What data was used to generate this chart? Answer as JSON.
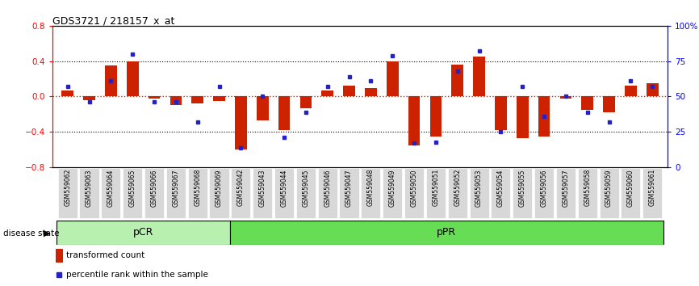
{
  "title": "GDS3721 / 218157_x_at",
  "samples": [
    "GSM559062",
    "GSM559063",
    "GSM559064",
    "GSM559065",
    "GSM559066",
    "GSM559067",
    "GSM559068",
    "GSM559069",
    "GSM559042",
    "GSM559043",
    "GSM559044",
    "GSM559045",
    "GSM559046",
    "GSM559047",
    "GSM559048",
    "GSM559049",
    "GSM559050",
    "GSM559051",
    "GSM559052",
    "GSM559053",
    "GSM559054",
    "GSM559055",
    "GSM559056",
    "GSM559057",
    "GSM559058",
    "GSM559059",
    "GSM559060",
    "GSM559061"
  ],
  "transformed_count": [
    0.07,
    -0.04,
    0.35,
    0.4,
    -0.02,
    -0.1,
    -0.08,
    -0.05,
    -0.6,
    -0.27,
    -0.38,
    -0.13,
    0.07,
    0.12,
    0.1,
    0.4,
    -0.55,
    -0.45,
    0.36,
    0.45,
    -0.38,
    -0.47,
    -0.45,
    -0.02,
    -0.15,
    -0.18,
    0.12,
    0.15
  ],
  "percentile_rank": [
    57,
    46,
    61,
    80,
    46,
    46,
    32,
    57,
    14,
    50,
    21,
    39,
    57,
    64,
    61,
    79,
    17,
    18,
    68,
    82,
    25,
    57,
    36,
    50,
    39,
    32,
    61,
    57
  ],
  "pCR_count": 8,
  "pPR_count": 20,
  "ylim": [
    -0.8,
    0.8
  ],
  "yticks_left": [
    -0.8,
    -0.4,
    0.0,
    0.4,
    0.8
  ],
  "yticks_right": [
    0,
    25,
    50,
    75,
    100
  ],
  "bar_color": "#cc2200",
  "dot_color": "#2222cc",
  "hline_color": "#cc2200",
  "pCR_color": "#b8f0b0",
  "pPR_color": "#66dd55",
  "disease_state_label": "disease state",
  "legend_bar_label": "transformed count",
  "legend_dot_label": "percentile rank within the sample",
  "bar_width": 0.55,
  "xtick_bg": "#d8d8d8"
}
